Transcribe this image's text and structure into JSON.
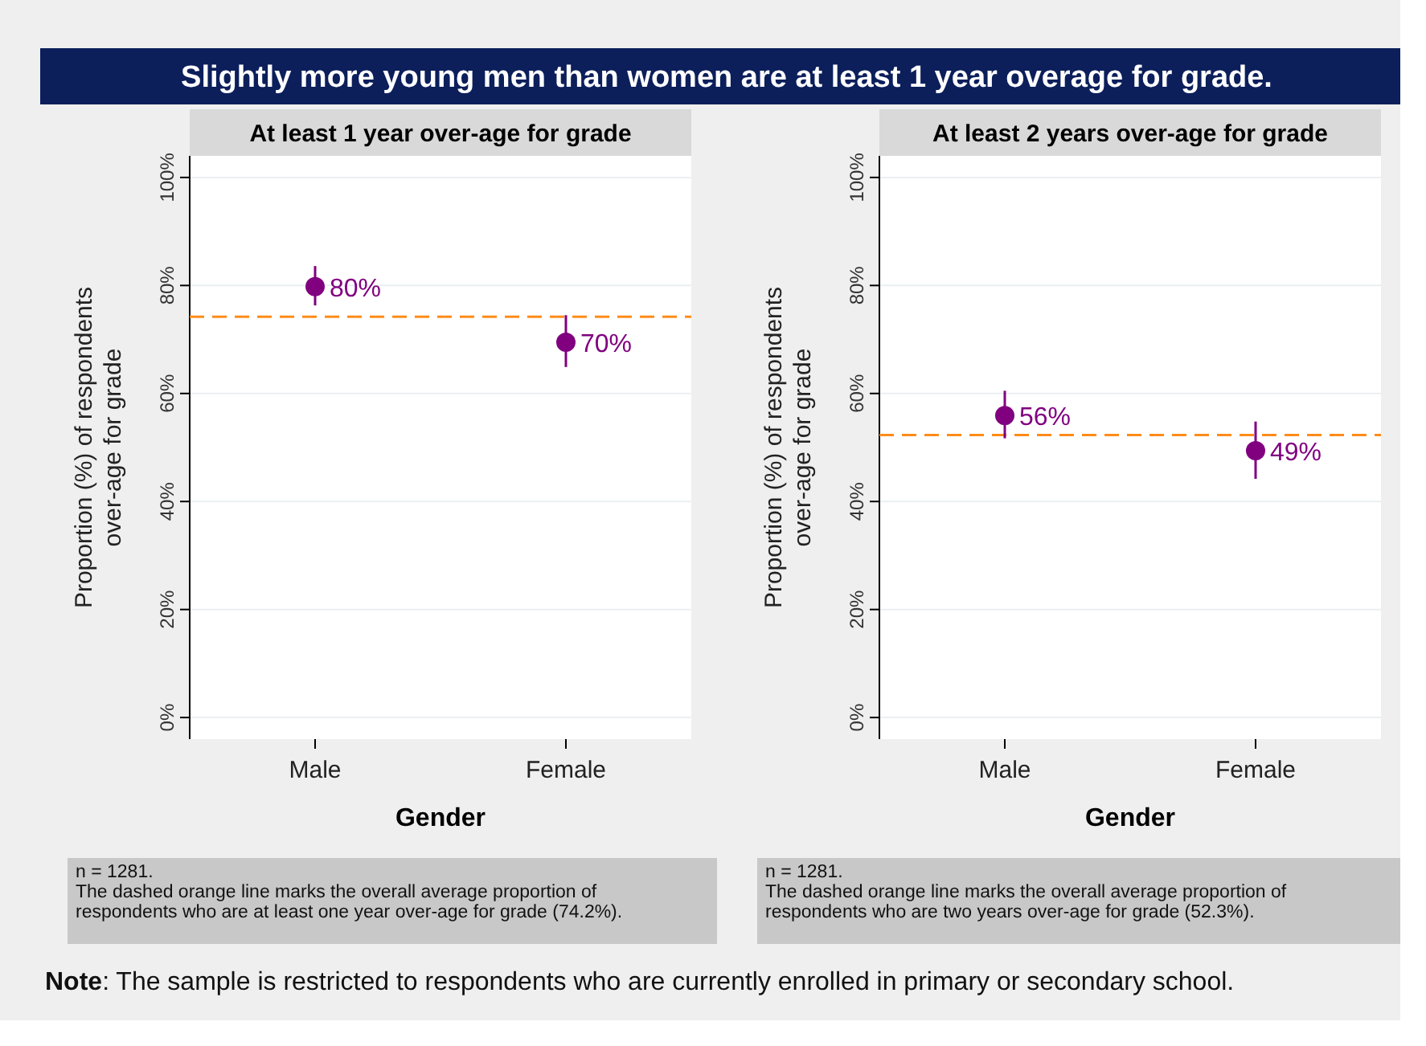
{
  "chart_data": [
    {
      "type": "scatter",
      "title": "Slightly more young men than women are at least 1 year overage for grade.",
      "subtitle": "At least 1 year over-age for grade",
      "xlabel": "Gender",
      "ylabel": "Proportion (%) of respondents over-age for grade",
      "categories": [
        "Male",
        "Female"
      ],
      "series": [
        {
          "color": "#800080",
          "values": [
            79.8,
            69.5
          ],
          "errors": [
            [
              76.3,
              83.6
            ],
            [
              64.9,
              74.5
            ]
          ],
          "value_labels": [
            "80%",
            "70%"
          ]
        }
      ],
      "ylim": [
        -4,
        104
      ],
      "yticks": [
        {
          "value": 0,
          "label": "0%"
        },
        {
          "value": 20,
          "label": "20%"
        },
        {
          "value": 40,
          "label": "40%"
        },
        {
          "value": 60,
          "label": "60%"
        },
        {
          "value": 80,
          "label": "80%"
        },
        {
          "value": 100,
          "label": "100%"
        }
      ],
      "grid": "y",
      "marker": "circle",
      "ref_lines": [
        {
          "axis": "y",
          "value": 74.2,
          "color": "#ff8c1a",
          "line_style": "dashed"
        }
      ],
      "annotations": [
        "n = 1281.",
        "The dashed orange line marks the overall average proportion of respondents who are at least one year over-age for grade (74.2%).",
        "Note: The sample is restricted to respondents who are currently enrolled in primary or secondary school."
      ]
    },
    {
      "type": "scatter",
      "subtitle": "At least 2 years over-age for grade",
      "xlabel": "Gender",
      "ylabel": "Proportion (%) of respondents over-age for grade",
      "categories": [
        "Male",
        "Female"
      ],
      "series": [
        {
          "color": "#800080",
          "values": [
            55.9,
            49.4
          ],
          "errors": [
            [
              51.7,
              60.5
            ],
            [
              44.2,
              54.8
            ]
          ],
          "value_labels": [
            "56%",
            "49%"
          ]
        }
      ],
      "ylim": [
        -4,
        104
      ],
      "yticks": [
        {
          "value": 0,
          "label": "0%"
        },
        {
          "value": 20,
          "label": "20%"
        },
        {
          "value": 40,
          "label": "40%"
        },
        {
          "value": 60,
          "label": "60%"
        },
        {
          "value": 80,
          "label": "80%"
        },
        {
          "value": 100,
          "label": "100%"
        }
      ],
      "grid": "y",
      "marker": "circle",
      "ref_lines": [
        {
          "axis": "y",
          "value": 52.3,
          "color": "#ff8c1a",
          "line_style": "dashed"
        }
      ],
      "annotations": [
        "n = 1281.",
        "The dashed orange line marks the overall average proportion of respondents who are two years over-age for grade (52.3%)."
      ]
    }
  ]
}
